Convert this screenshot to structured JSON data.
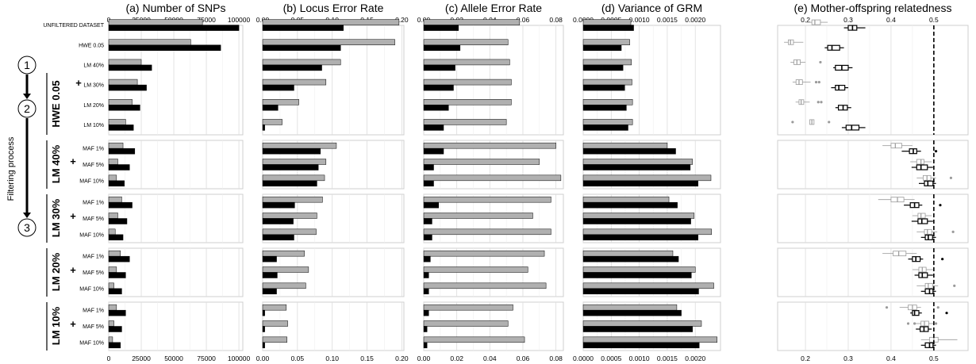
{
  "chart_data": [
    {
      "type": "bar",
      "title": "(a) Number of SNPs",
      "ticks": [
        "0",
        "25000",
        "50000",
        "75000",
        "100000"
      ],
      "xlim": [
        0,
        103000
      ],
      "series": [
        {
          "color": "#b0b0b0",
          "values": [
            72000,
            63000,
            25000,
            22000,
            18000,
            13000,
            11000,
            7000,
            6000,
            10000,
            7000,
            5000,
            9000,
            6000,
            4000,
            6000,
            4000,
            3000
          ]
        },
        {
          "color": "#000000",
          "values": [
            100000,
            86000,
            33000,
            29000,
            24000,
            19000,
            20000,
            16000,
            12000,
            18000,
            14000,
            11000,
            16000,
            13000,
            10000,
            13000,
            10000,
            9000
          ]
        }
      ]
    },
    {
      "type": "bar",
      "title": "(b) Locus Error Rate",
      "ticks": [
        "0.00",
        "0.05",
        "0.10",
        "0.15",
        "0.20"
      ],
      "xlim": [
        0,
        0.203
      ],
      "series": [
        {
          "color": "#b0b0b0",
          "values": [
            0.196,
            0.19,
            0.112,
            0.091,
            0.052,
            0.028,
            0.106,
            0.091,
            0.089,
            0.086,
            0.078,
            0.077,
            0.06,
            0.066,
            0.062,
            0.034,
            0.036,
            0.035
          ]
        },
        {
          "color": "#000000",
          "values": [
            0.116,
            0.112,
            0.085,
            0.045,
            0.022,
            0.003,
            0.083,
            0.08,
            0.078,
            0.046,
            0.044,
            0.045,
            0.02,
            0.021,
            0.02,
            0.003,
            0.003,
            0.003
          ]
        }
      ]
    },
    {
      "type": "bar",
      "title": "(c) Allele Error Rate",
      "ticks": [
        "0.00",
        "0.02",
        "0.04",
        "0.06",
        "0.08"
      ],
      "xlim": [
        0,
        0.0845
      ],
      "series": [
        {
          "color": "#b0b0b0",
          "values": [
            0.058,
            0.051,
            0.052,
            0.053,
            0.053,
            0.05,
            0.08,
            0.07,
            0.083,
            0.077,
            0.066,
            0.077,
            0.073,
            0.063,
            0.074,
            0.054,
            0.051,
            0.061
          ]
        },
        {
          "color": "#000000",
          "values": [
            0.021,
            0.022,
            0.019,
            0.018,
            0.015,
            0.012,
            0.012,
            0.006,
            0.006,
            0.009,
            0.005,
            0.005,
            0.004,
            0.003,
            0.003,
            0.003,
            0.002,
            0.002
          ]
        }
      ]
    },
    {
      "type": "bar",
      "title": "(d) Variance of GRM",
      "ticks": [
        "0.0000",
        "0.0005",
        "0.0010",
        "0.0015",
        "0.0020"
      ],
      "xlim": [
        0,
        0.00245
      ],
      "series": [
        {
          "color": "#b0b0b0",
          "values": [
            0.00085,
            0.00083,
            0.00086,
            0.00087,
            0.00088,
            0.00088,
            0.0015,
            0.00195,
            0.00228,
            0.00153,
            0.00198,
            0.00229,
            0.0016,
            0.002,
            0.00233,
            0.00167,
            0.00211,
            0.00239
          ]
        },
        {
          "color": "#000000",
          "values": [
            0.0009,
            0.00068,
            0.00071,
            0.00074,
            0.00077,
            0.0008,
            0.00165,
            0.00191,
            0.00205,
            0.00168,
            0.00192,
            0.00205,
            0.0017,
            0.00193,
            0.00206,
            0.00175,
            0.00195,
            0.00207
          ]
        }
      ]
    },
    {
      "type": "boxplot",
      "title": "(e) Mother-offspring relatedness",
      "ticks": [
        "0.2",
        "0.3",
        "0.4",
        "0.5"
      ],
      "xlim": [
        0.135,
        0.58
      ],
      "reference_line": 0.5,
      "series": [
        {
          "color": "#9a9a9a",
          "boxes": [
            {
              "min": 0.2,
              "q1": 0.215,
              "median": 0.222,
              "q3": 0.235,
              "max": 0.252,
              "outliers": []
            },
            {
              "min": 0.15,
              "q1": 0.16,
              "median": 0.165,
              "q3": 0.172,
              "max": 0.195,
              "outliers": []
            },
            {
              "min": 0.165,
              "q1": 0.173,
              "median": 0.18,
              "q3": 0.188,
              "max": 0.2,
              "outliers": [
                0.235
              ]
            },
            {
              "min": 0.17,
              "q1": 0.178,
              "median": 0.185,
              "q3": 0.193,
              "max": 0.212,
              "outliers": [
                0.225,
                0.232
              ]
            },
            {
              "min": 0.177,
              "q1": 0.185,
              "median": 0.19,
              "q3": 0.196,
              "max": 0.21,
              "outliers": [
                0.23,
                0.237
              ]
            },
            {
              "min": 0.21,
              "q1": 0.21,
              "median": 0.215,
              "q3": 0.22,
              "max": 0.22,
              "outliers": [
                0.17,
                0.255
              ]
            },
            {
              "min": 0.38,
              "q1": 0.4,
              "median": 0.41,
              "q3": 0.425,
              "max": 0.45,
              "outliers": []
            },
            {
              "min": 0.445,
              "q1": 0.46,
              "median": 0.47,
              "q3": 0.477,
              "max": 0.495,
              "outliers": []
            },
            {
              "min": 0.46,
              "q1": 0.475,
              "median": 0.484,
              "q3": 0.493,
              "max": 0.505,
              "outliers": [
                0.54
              ]
            },
            {
              "min": 0.37,
              "q1": 0.4,
              "median": 0.415,
              "q3": 0.43,
              "max": 0.455,
              "outliers": []
            },
            {
              "min": 0.45,
              "q1": 0.463,
              "median": 0.47,
              "q3": 0.48,
              "max": 0.495,
              "outliers": []
            },
            {
              "min": 0.46,
              "q1": 0.478,
              "median": 0.485,
              "q3": 0.495,
              "max": 0.508,
              "outliers": [
                0.545
              ]
            },
            {
              "min": 0.38,
              "q1": 0.405,
              "median": 0.418,
              "q3": 0.435,
              "max": 0.46,
              "outliers": []
            },
            {
              "min": 0.45,
              "q1": 0.465,
              "median": 0.473,
              "q3": 0.482,
              "max": 0.498,
              "outliers": []
            },
            {
              "min": 0.46,
              "q1": 0.48,
              "median": 0.487,
              "q3": 0.497,
              "max": 0.51,
              "outliers": [
                0.548
              ]
            },
            {
              "min": 0.42,
              "q1": 0.44,
              "median": 0.45,
              "q3": 0.46,
              "max": 0.47,
              "outliers": [
                0.39,
                0.51
              ]
            },
            {
              "min": 0.455,
              "q1": 0.47,
              "median": 0.478,
              "q3": 0.488,
              "max": 0.5,
              "outliers": [
                0.44,
                0.455,
                0.505
              ]
            },
            {
              "min": 0.47,
              "q1": 0.49,
              "median": 0.5,
              "q3": 0.51,
              "max": 0.555,
              "outliers": []
            }
          ]
        },
        {
          "color": "#000000",
          "boxes": [
            {
              "min": 0.29,
              "q1": 0.3,
              "median": 0.31,
              "q3": 0.32,
              "max": 0.34,
              "outliers": []
            },
            {
              "min": 0.245,
              "q1": 0.252,
              "median": 0.262,
              "q3": 0.28,
              "max": 0.29,
              "outliers": []
            },
            {
              "min": 0.265,
              "q1": 0.27,
              "median": 0.285,
              "q3": 0.3,
              "max": 0.31,
              "outliers": []
            },
            {
              "min": 0.26,
              "q1": 0.27,
              "median": 0.278,
              "q3": 0.292,
              "max": 0.3,
              "outliers": []
            },
            {
              "min": 0.27,
              "q1": 0.277,
              "median": 0.288,
              "q3": 0.298,
              "max": 0.307,
              "outliers": []
            },
            {
              "min": 0.285,
              "q1": 0.295,
              "median": 0.308,
              "q3": 0.325,
              "max": 0.34,
              "outliers": []
            },
            {
              "min": 0.425,
              "q1": 0.443,
              "median": 0.452,
              "q3": 0.46,
              "max": 0.47,
              "outliers": [
                0.505
              ]
            },
            {
              "min": 0.448,
              "q1": 0.46,
              "median": 0.47,
              "q3": 0.485,
              "max": 0.498,
              "outliers": []
            },
            {
              "min": 0.465,
              "q1": 0.478,
              "median": 0.486,
              "q3": 0.498,
              "max": 0.505,
              "outliers": []
            },
            {
              "min": 0.43,
              "q1": 0.445,
              "median": 0.455,
              "q3": 0.465,
              "max": 0.473,
              "outliers": [
                0.515
              ]
            },
            {
              "min": 0.448,
              "q1": 0.463,
              "median": 0.472,
              "q3": 0.485,
              "max": 0.498,
              "outliers": []
            },
            {
              "min": 0.47,
              "q1": 0.48,
              "median": 0.487,
              "q3": 0.497,
              "max": 0.505,
              "outliers": []
            },
            {
              "min": 0.44,
              "q1": 0.45,
              "median": 0.458,
              "q3": 0.468,
              "max": 0.475,
              "outliers": [
                0.52
              ]
            },
            {
              "min": 0.455,
              "q1": 0.465,
              "median": 0.473,
              "q3": 0.485,
              "max": 0.498,
              "outliers": []
            },
            {
              "min": 0.47,
              "q1": 0.48,
              "median": 0.49,
              "q3": 0.498,
              "max": 0.505,
              "outliers": []
            },
            {
              "min": 0.445,
              "q1": 0.45,
              "median": 0.455,
              "q3": 0.465,
              "max": 0.472,
              "outliers": [
                0.53
              ]
            },
            {
              "min": 0.458,
              "q1": 0.468,
              "median": 0.477,
              "q3": 0.487,
              "max": 0.495,
              "outliers": []
            },
            {
              "min": 0.47,
              "q1": 0.48,
              "median": 0.49,
              "q3": 0.498,
              "max": 0.505,
              "outliers": []
            }
          ]
        }
      ]
    }
  ],
  "rows": {
    "labels": [
      [
        "UNFILTERED DATASET",
        "HWE 0.05",
        "LM 40%",
        "LM 30%",
        "LM 20%",
        "LM 10%"
      ],
      [
        "MAF  1%",
        "MAF  5%",
        "MAF 10%"
      ],
      [
        "MAF  1%",
        "MAF  5%",
        "MAF 10%"
      ],
      [
        "MAF  1%",
        "MAF  5%",
        "MAF 10%"
      ],
      [
        "MAF  1%",
        "MAF  5%",
        "MAF 10%"
      ]
    ],
    "group_labels": [
      "HWE 0.05",
      "LM 40%",
      "LM 30%",
      "LM 20%",
      "LM 10%"
    ],
    "plus": "+"
  },
  "flow": {
    "steps": [
      "1",
      "2",
      "3"
    ],
    "label": "Filtering process"
  }
}
